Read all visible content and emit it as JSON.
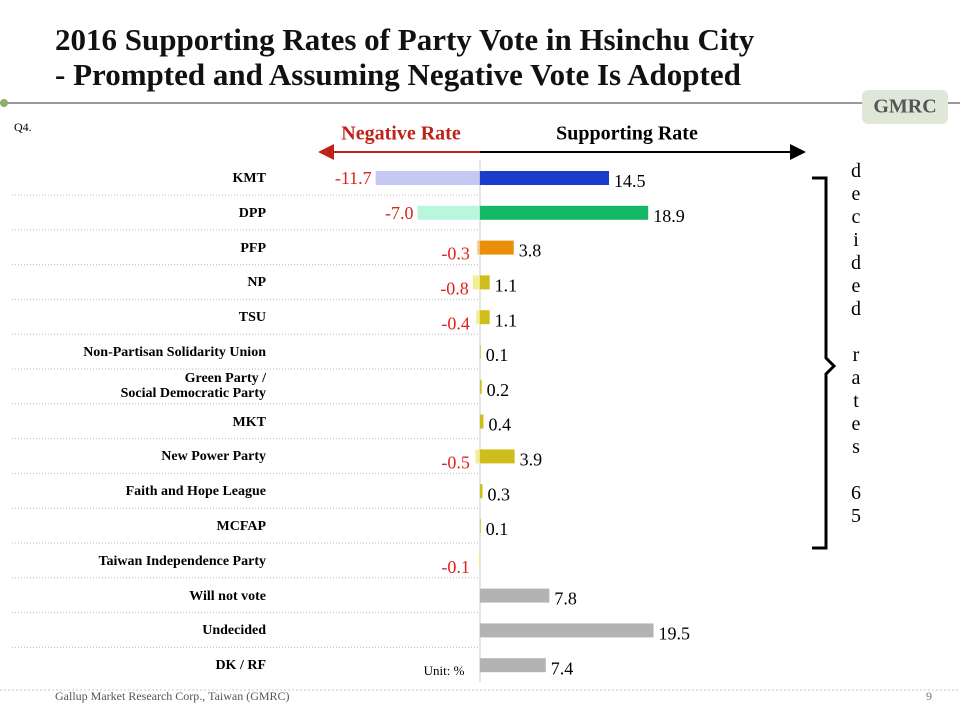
{
  "page": {
    "title_lines": [
      "2016 Supporting Rates of Party Vote in Hsinchu City",
      "- Prompted and Assuming Negative Vote Is Adopted"
    ],
    "question": "Q4.",
    "logo": "GMRC",
    "side_note": "decided rates 65",
    "footer": "Gallup Market Research Corp., Taiwan (GMRC)",
    "page_number": "9"
  },
  "chart_data": {
    "type": "diverging-bar",
    "negative_header": "Negative Rate",
    "positive_header": "Supporting Rate",
    "unit": "Unit: %",
    "categories": [
      "KMT",
      "DPP",
      "PFP",
      "NP",
      "TSU",
      "Non-Partisan Solidarity Union",
      "Green Party /\nSocial Democratic Party",
      "MKT",
      "New Power Party",
      "Faith and Hope League",
      "MCFAP",
      "Taiwan Independence Party",
      "Will not vote",
      "Undecided",
      "DK / RF"
    ],
    "xlim": [
      -12,
      20
    ],
    "series": [
      {
        "name": "Negative Rate",
        "values": [
          -11.7,
          -7.0,
          -0.3,
          -0.8,
          -0.4,
          null,
          null,
          null,
          -0.5,
          null,
          null,
          -0.1,
          null,
          null,
          null
        ],
        "value_labels": [
          "-11.7",
          "-7.0",
          "-0.3",
          "-0.8",
          "-0.4",
          null,
          null,
          null,
          "-0.5",
          null,
          null,
          "-0.1",
          null,
          null,
          null
        ],
        "label_color": "#e0201b",
        "colors": [
          "#c5c8f2",
          "#b9f7dc",
          "#f6c98a",
          "#f2ee96",
          "#f2ee96",
          null,
          null,
          null,
          "#f2ee96",
          null,
          null,
          "#f2ee96",
          null,
          null,
          null
        ]
      },
      {
        "name": "Supporting Rate",
        "values": [
          14.5,
          18.9,
          3.8,
          1.1,
          1.1,
          0.1,
          0.2,
          0.4,
          3.9,
          0.3,
          0.1,
          null,
          7.8,
          19.5,
          7.4
        ],
        "label_color": "#000000",
        "colors": [
          "#1a3ccc",
          "#14b866",
          "#e8900c",
          "#cfbd1c",
          "#cfbd1c",
          "#cfbd1c",
          "#cfbd1c",
          "#cfbd1c",
          "#cfbd1c",
          "#cfbd1c",
          "#cfbd1c",
          null,
          "#b3b3b3",
          "#b3b3b3",
          "#b3b3b3"
        ]
      }
    ]
  }
}
